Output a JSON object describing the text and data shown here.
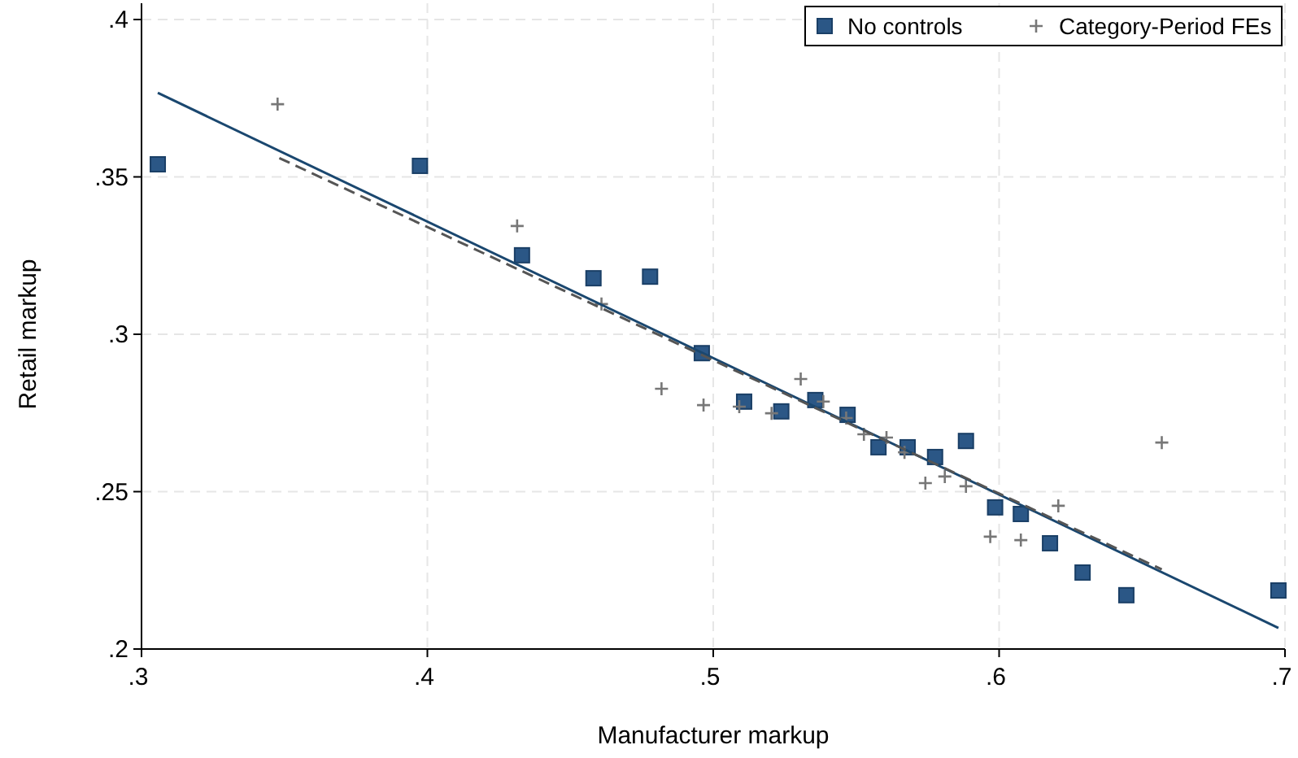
{
  "chart_data": {
    "type": "scatter",
    "xlabel": "Manufacturer markup",
    "ylabel": "Retail markup",
    "xlim": [
      0.3,
      0.7
    ],
    "ylim": [
      0.2,
      0.4
    ],
    "xticks": [
      {
        "value": 0.3,
        "label": ".3"
      },
      {
        "value": 0.4,
        "label": ".4"
      },
      {
        "value": 0.5,
        "label": ".5"
      },
      {
        "value": 0.6,
        "label": ".6"
      },
      {
        "value": 0.7,
        "label": ".7"
      }
    ],
    "yticks": [
      {
        "value": 0.2,
        "label": ".2"
      },
      {
        "value": 0.25,
        "label": ".25"
      },
      {
        "value": 0.3,
        "label": ".3"
      },
      {
        "value": 0.35,
        "label": ".35"
      },
      {
        "value": 0.4,
        "label": ".4"
      }
    ],
    "grid": true,
    "legend": "top right",
    "series": [
      {
        "name": "No controls",
        "type": "scatter",
        "marker": "square",
        "color": "#2b5786",
        "x": [
          0.3057,
          0.3974,
          0.4331,
          0.4581,
          0.4779,
          0.496,
          0.5108,
          0.5238,
          0.5357,
          0.547,
          0.5578,
          0.568,
          0.5776,
          0.5884,
          0.5986,
          0.6076,
          0.6178,
          0.6292,
          0.6445,
          0.6977
        ],
        "values": [
          0.354,
          0.3535,
          0.3251,
          0.3178,
          0.3183,
          0.294,
          0.2786,
          0.2755,
          0.2791,
          0.2744,
          0.2641,
          0.2641,
          0.261,
          0.2661,
          0.245,
          0.2429,
          0.2336,
          0.2243,
          0.2171,
          0.2186
        ]
      },
      {
        "name": "Category-Period FEs",
        "type": "scatter",
        "marker": "cross",
        "color": "#777777",
        "x": [
          0.3476,
          0.4314,
          0.4609,
          0.4819,
          0.4966,
          0.5091,
          0.5204,
          0.5306,
          0.5385,
          0.5465,
          0.5527,
          0.5606,
          0.5669,
          0.5742,
          0.581,
          0.5884,
          0.5969,
          0.6076,
          0.6207,
          0.6569
        ],
        "values": [
          0.3731,
          0.3344,
          0.3096,
          0.2827,
          0.2775,
          0.277,
          0.2749,
          0.2858,
          0.2786,
          0.2734,
          0.2682,
          0.2672,
          0.2625,
          0.2527,
          0.2548,
          0.2517,
          0.2357,
          0.2346,
          0.2455,
          0.2656
        ]
      },
      {
        "type": "line",
        "color": "#1a476f",
        "line_style": "solid",
        "x": [
          0.3057,
          0.6977
        ],
        "values": [
          0.3767,
          0.2067
        ]
      },
      {
        "type": "line",
        "color": "#555555",
        "line_style": "dashed",
        "x": [
          0.3482,
          0.6569
        ],
        "values": [
          0.356,
          0.2253
        ]
      }
    ]
  }
}
